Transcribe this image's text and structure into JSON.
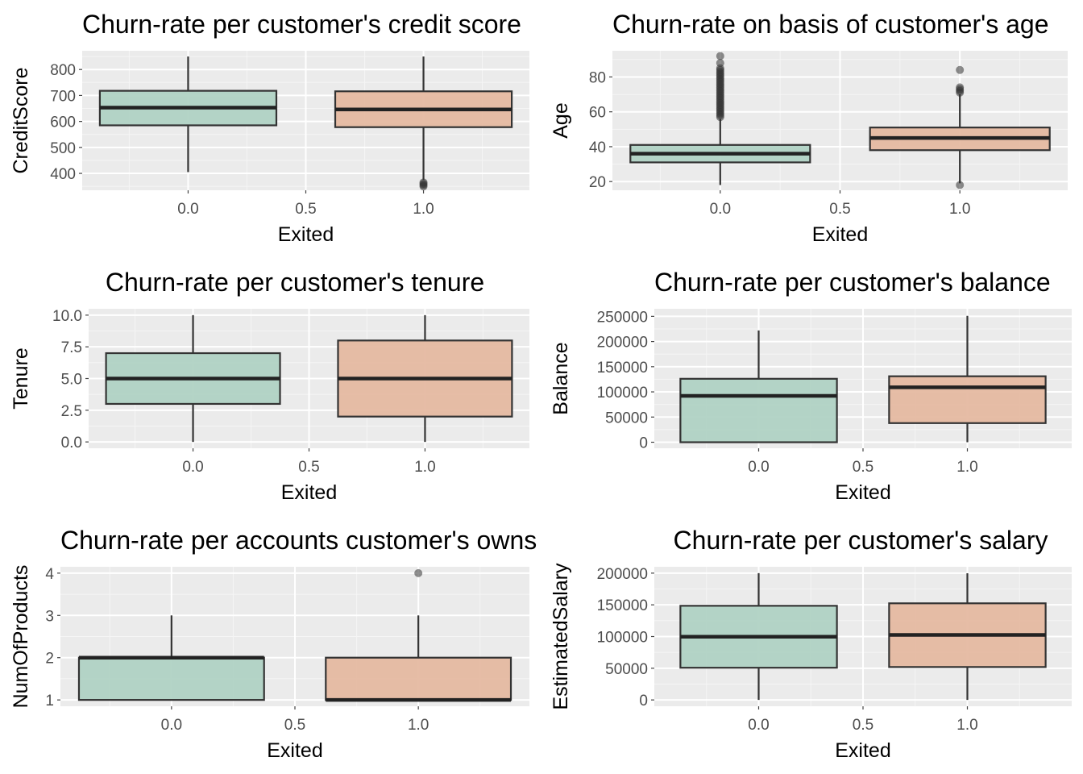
{
  "chart_data": [
    {
      "type": "boxplot",
      "title": "Churn-rate per customer's credit score",
      "xlabel": "Exited",
      "ylabel": "CreditScore",
      "xlim": [
        -0.45,
        1.45
      ],
      "ylim": [
        335,
        872
      ],
      "x_ticks": [
        "0.0",
        "0.5",
        "1.0"
      ],
      "y_ticks": [
        "400",
        "500",
        "600",
        "700",
        "800"
      ],
      "boxes": [
        {
          "x": 0,
          "min": 405,
          "q1": 585,
          "median": 653,
          "q3": 718,
          "max": 850,
          "fill": "#b0d2c4",
          "outliers": []
        },
        {
          "x": 1,
          "min": 375,
          "q1": 578,
          "median": 646,
          "q3": 716,
          "max": 850,
          "fill": "#e5b9a1",
          "outliers": [
            350,
            355,
            360,
            365
          ]
        }
      ]
    },
    {
      "type": "boxplot",
      "title": "Churn-rate on basis of customer's age",
      "xlabel": "Exited",
      "ylabel": "Age",
      "xlim": [
        -0.45,
        1.45
      ],
      "ylim": [
        15,
        95
      ],
      "x_ticks": [
        "0.0",
        "0.5",
        "1.0"
      ],
      "y_ticks": [
        "20",
        "40",
        "60",
        "80"
      ],
      "boxes": [
        {
          "x": 0,
          "min": 18,
          "q1": 31,
          "median": 36,
          "q3": 41,
          "max": 56,
          "fill": "#b0d2c4",
          "outliers": [
            57,
            58,
            59,
            60,
            61,
            62,
            63,
            64,
            65,
            66,
            67,
            68,
            69,
            70,
            71,
            72,
            73,
            74,
            75,
            76,
            77,
            78,
            79,
            80,
            81,
            82,
            83,
            84,
            85,
            88,
            92
          ]
        },
        {
          "x": 1,
          "min": 19,
          "q1": 38,
          "median": 45,
          "q3": 51,
          "max": 70,
          "fill": "#e5b9a1",
          "outliers": [
            18,
            71,
            72,
            73,
            74,
            84
          ]
        }
      ]
    },
    {
      "type": "boxplot",
      "title": "Churn-rate per customer's tenure",
      "xlabel": "Exited",
      "ylabel": "Tenure",
      "xlim": [
        -0.45,
        1.45
      ],
      "ylim": [
        -0.5,
        10.5
      ],
      "x_ticks": [
        "0.0",
        "0.5",
        "1.0"
      ],
      "y_ticks": [
        "0.0",
        "2.5",
        "5.0",
        "7.5",
        "10.0"
      ],
      "boxes": [
        {
          "x": 0,
          "min": 0,
          "q1": 3,
          "median": 5,
          "q3": 7,
          "max": 10,
          "fill": "#b0d2c4",
          "outliers": []
        },
        {
          "x": 1,
          "min": 0,
          "q1": 2,
          "median": 5,
          "q3": 8,
          "max": 10,
          "fill": "#e5b9a1",
          "outliers": []
        }
      ]
    },
    {
      "type": "boxplot",
      "title": "Churn-rate per customer's balance",
      "xlabel": "Exited",
      "ylabel": "Balance",
      "xlim": [
        -0.5,
        1.5
      ],
      "ylim": [
        -12000,
        265000
      ],
      "x_ticks": [
        "0.0",
        "0.5",
        "1.0"
      ],
      "y_ticks": [
        "0",
        "50000",
        "100000",
        "150000",
        "200000",
        "250000"
      ],
      "boxes": [
        {
          "x": 0,
          "min": 0,
          "q1": 0,
          "median": 92000,
          "q3": 126000,
          "max": 222000,
          "fill": "#b0d2c4",
          "outliers": []
        },
        {
          "x": 1,
          "min": 0,
          "q1": 38000,
          "median": 109000,
          "q3": 131000,
          "max": 251000,
          "fill": "#e5b9a1",
          "outliers": []
        }
      ]
    },
    {
      "type": "boxplot",
      "title": "Churn-rate per accounts customer's owns",
      "xlabel": "Exited",
      "ylabel": "NumOfProducts",
      "xlim": [
        -0.45,
        1.45
      ],
      "ylim": [
        0.85,
        4.15
      ],
      "x_ticks": [
        "0.0",
        "0.5",
        "1.0"
      ],
      "y_ticks": [
        "1",
        "2",
        "3",
        "4"
      ],
      "boxes": [
        {
          "x": 0,
          "min": 1,
          "q1": 1,
          "median": 2,
          "q3": 2,
          "max": 3,
          "fill": "#b0d2c4",
          "outliers": []
        },
        {
          "x": 1,
          "min": 1,
          "q1": 1,
          "median": 1,
          "q3": 2,
          "max": 3,
          "fill": "#e5b9a1",
          "outliers": [
            4
          ]
        }
      ]
    },
    {
      "type": "boxplot",
      "title": "Churn-rate per customer's salary",
      "xlabel": "Exited",
      "ylabel": "EstimatedSalary",
      "xlim": [
        -0.5,
        1.5
      ],
      "ylim": [
        -10000,
        210000
      ],
      "x_ticks": [
        "0.0",
        "0.5",
        "1.0"
      ],
      "y_ticks": [
        "0",
        "50000",
        "100000",
        "150000",
        "200000"
      ],
      "boxes": [
        {
          "x": 0,
          "min": 11,
          "q1": 50800,
          "median": 99700,
          "q3": 148500,
          "max": 199990,
          "fill": "#b0d2c4",
          "outliers": []
        },
        {
          "x": 1,
          "min": 11,
          "q1": 51900,
          "median": 102500,
          "q3": 152400,
          "max": 199800,
          "fill": "#e5b9a1",
          "outliers": []
        }
      ]
    }
  ]
}
